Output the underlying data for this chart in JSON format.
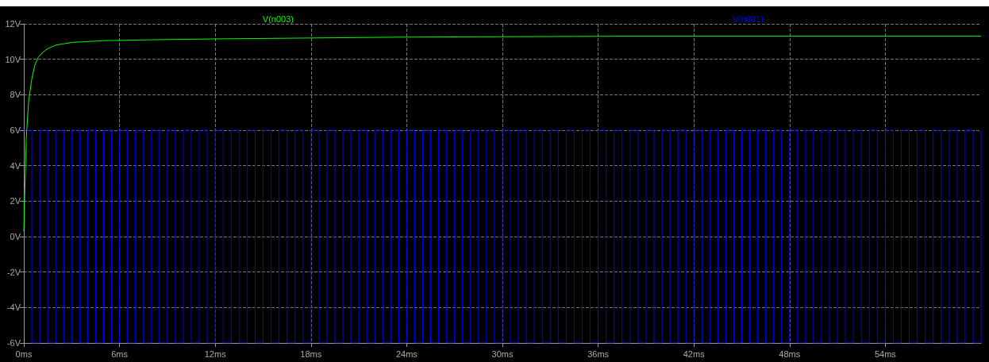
{
  "chart_data": {
    "type": "line",
    "xlim": [
      0,
      60
    ],
    "xticks": [
      {
        "value": 0,
        "label": "0ms"
      },
      {
        "value": 6,
        "label": "6ms"
      },
      {
        "value": 12,
        "label": "12ms"
      },
      {
        "value": 18,
        "label": "18ms"
      },
      {
        "value": 24,
        "label": "24ms"
      },
      {
        "value": 30,
        "label": "30ms"
      },
      {
        "value": 36,
        "label": "36ms"
      },
      {
        "value": 42,
        "label": "42ms"
      },
      {
        "value": 48,
        "label": "48ms"
      },
      {
        "value": 54,
        "label": "54ms"
      }
    ],
    "ylim": [
      -6,
      12
    ],
    "yticks": [
      {
        "value": -6,
        "label": "-6V"
      },
      {
        "value": -4,
        "label": "-4V"
      },
      {
        "value": -2,
        "label": "-2V"
      },
      {
        "value": 0,
        "label": "0V"
      },
      {
        "value": 2,
        "label": "2V"
      },
      {
        "value": 4,
        "label": "4V"
      },
      {
        "value": 6,
        "label": "6V"
      },
      {
        "value": 8,
        "label": "8V"
      },
      {
        "value": 10,
        "label": "10V"
      },
      {
        "value": 12,
        "label": "12V"
      }
    ],
    "grid": true,
    "legend": "top",
    "series": [
      {
        "name": "V(n003)",
        "color": "#00ff00",
        "x": [
          0,
          0.15,
          0.3,
          0.5,
          0.7,
          0.9,
          1.2,
          1.5,
          2,
          3,
          5,
          8,
          12,
          18,
          24,
          37,
          60
        ],
        "values": [
          0.3,
          5.5,
          7.6,
          8.9,
          9.7,
          10.1,
          10.4,
          10.6,
          10.8,
          10.95,
          11.05,
          11.1,
          11.15,
          11.2,
          11.25,
          11.3,
          11.3
        ]
      },
      {
        "name": "V(n001)",
        "type": "step",
        "color": "#0000ff",
        "x": [
          0,
          0.5,
          1,
          1.5,
          2,
          2.5,
          3,
          3.5,
          4,
          4.5,
          5,
          5.5,
          6,
          6.5,
          7,
          7.5,
          8,
          8.5,
          9,
          9.5,
          10,
          10.5,
          11,
          11.5,
          12,
          12.5,
          13,
          13.5,
          14,
          14.5,
          15,
          15.5,
          16,
          16.5,
          17,
          17.5,
          18,
          18.5,
          19,
          19.5,
          20,
          20.5,
          21,
          21.5,
          22,
          22.5,
          23,
          23.5,
          24,
          24.5,
          25,
          25.5,
          26,
          26.5,
          27,
          27.5,
          28,
          28.5,
          29,
          29.5,
          30,
          30.5,
          31,
          31.5,
          32,
          32.5,
          33,
          33.5,
          34,
          34.5,
          35,
          35.5,
          36,
          36.5,
          37,
          37.5,
          38,
          38.5,
          39,
          39.5,
          40,
          40.5,
          41,
          41.5,
          42,
          42.5,
          43,
          43.5,
          44,
          44.5,
          45,
          45.5,
          46,
          46.5,
          47,
          47.5,
          48,
          48.5,
          49,
          49.5,
          50,
          50.5,
          51,
          51.5,
          52,
          52.5,
          53,
          53.5,
          54,
          54.5,
          55,
          55.5,
          56,
          56.5,
          57,
          57.5,
          58,
          58.5,
          59,
          59.5,
          60
        ],
        "values": [
          6,
          -6,
          6,
          -6,
          6,
          -6,
          6,
          -6,
          6,
          -6,
          6,
          -6,
          6,
          -6,
          6,
          -6,
          6,
          -6,
          6,
          -6,
          6,
          -6,
          6,
          -6,
          6,
          -6,
          6,
          -6,
          6,
          -6,
          6,
          -6,
          6,
          -6,
          6,
          -6,
          6,
          -6,
          6,
          -6,
          6,
          -6,
          6,
          -6,
          6,
          -6,
          6,
          -6,
          6,
          -6,
          6,
          -6,
          6,
          -6,
          6,
          -6,
          6,
          -6,
          6,
          -6,
          6,
          -6,
          6,
          -6,
          6,
          -6,
          6,
          -6,
          6,
          -6,
          6,
          -6,
          6,
          -6,
          6,
          -6,
          6,
          -6,
          6,
          -6,
          6,
          -6,
          6,
          -6,
          6,
          -6,
          6,
          -6,
          6,
          -6,
          6,
          -6,
          6,
          -6,
          6,
          -6,
          6,
          -6,
          6,
          -6,
          6,
          -6,
          6,
          -6,
          6,
          -6,
          6,
          -6,
          6,
          -6,
          6,
          -6,
          6,
          -6,
          6,
          -6,
          6,
          -6,
          6,
          -6,
          6
        ]
      }
    ]
  }
}
